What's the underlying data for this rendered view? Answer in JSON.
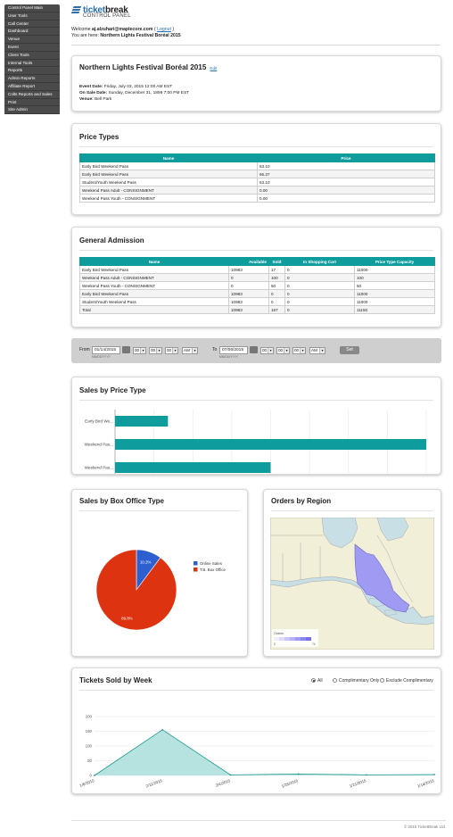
{
  "sidebar": {
    "items": [
      {
        "label": "Control Panel Main"
      },
      {
        "label": "User Tools"
      },
      {
        "label": "Call Center"
      },
      {
        "label": "Dashboard"
      },
      {
        "label": "Venue"
      },
      {
        "label": "Event"
      },
      {
        "label": "Client Tools"
      },
      {
        "label": "Internal Tools"
      },
      {
        "label": "Reports"
      },
      {
        "label": "Admin Reports"
      },
      {
        "label": "Affiliate Report"
      },
      {
        "label": "Colts Reports and Sales"
      },
      {
        "label": "Print"
      },
      {
        "label": "Site Admin"
      }
    ]
  },
  "header": {
    "logo_main_a": "ticket",
    "logo_main_b": "break",
    "logo_sub": "CONTROL PANEL",
    "welcome_prefix": "Welcome ",
    "user_email": "aj.alzuhari@maplecore.com",
    "logout_open": " ( ",
    "logout_label": "Logout",
    "logout_close": " )",
    "here_prefix": "You are here: ",
    "here_value": "Northern Lights Festival Boréal 2015"
  },
  "event": {
    "title": "Northern Lights Festival Boréal 2015",
    "edit_label": "Edit",
    "date_label": "Event Date:",
    "date_value": " Friday, July 03, 2015 12:00 AM EST",
    "onsale_label": "On Sale Date:",
    "onsale_value": " Sunday, December 31, 1899 7:00 PM EST",
    "venue_label": "Venue:",
    "venue_value": " Bell Park"
  },
  "price_types": {
    "title": "Price Types",
    "headers": [
      "Name",
      "Price"
    ],
    "rows": [
      [
        "Early Bird Weekend Pass",
        "53.10"
      ],
      [
        "Early Bird Weekend Pass",
        "66.37"
      ],
      [
        "Student/Youth Weekend Pass",
        "53.10"
      ],
      [
        "Weekend Pass Adult - CONSIGNMENT",
        "0.00"
      ],
      [
        "Weekend Pass Youth - CONSIGNMENT",
        "0.00"
      ]
    ]
  },
  "general_admission": {
    "title": "General Admission",
    "headers": [
      "Name",
      "Available",
      "Sold",
      "In Shopping Cart",
      "Price Type Capacity"
    ],
    "rows": [
      [
        "Early Bird Weekend Pass",
        "10983",
        "17",
        "0",
        "11000"
      ],
      [
        "Weekend Pass Adult - CONSIGNMENT",
        "0",
        "100",
        "0",
        "100"
      ],
      [
        "Weekend Pass Youth - CONSIGNMENT",
        "0",
        "50",
        "0",
        "50"
      ],
      [
        "Early Bird Weekend Pass",
        "10983",
        "0",
        "0",
        "11000"
      ],
      [
        "Student/Youth Weekend Pass",
        "10983",
        "0",
        "0",
        "11000"
      ],
      [
        "Total",
        "10983",
        "167",
        "0",
        "11150"
      ]
    ]
  },
  "filter": {
    "from_label": "From",
    "from_date": "01/14/2015",
    "to_label": "To",
    "to_date": "07/06/2015",
    "date_hint": "MM/DD/YYYY",
    "hour": "00",
    "minute": "00",
    "second": "00",
    "ampm": "AM",
    "set_label": "Set"
  },
  "sales_by_price_type": {
    "title": "Sales by Price Type"
  },
  "sales_by_box_office": {
    "title": "Sales by Box Office Type"
  },
  "orders_by_region": {
    "title": "Orders by Region",
    "legend_label": "Orders",
    "legend_min": "0",
    "legend_max": "74"
  },
  "tickets_by_week": {
    "title": "Tickets Sold by Week",
    "options": [
      {
        "label": "All",
        "checked": true
      },
      {
        "label": "Complimentary Only",
        "checked": false
      },
      {
        "label": "Exclude Complimentary",
        "checked": false
      }
    ]
  },
  "footer": {
    "text": "© 2015 TicketBreak Ltd."
  },
  "colors": {
    "teal": "#0f9c9c",
    "pie_blue": "#2e5fd0",
    "pie_red": "#dd3311",
    "region_fill": "#9f9af2",
    "area_fill": "#a9ddd9",
    "area_line": "#1a9b91"
  },
  "chart_data": [
    {
      "id": "price_type",
      "type": "bar",
      "orientation": "horizontal",
      "categories": [
        "Early Bird We...",
        "Weekend Pas...",
        "Weekend Pas..."
      ],
      "values": [
        17,
        100,
        50
      ],
      "grid": true
    },
    {
      "id": "box_office",
      "type": "pie",
      "labels": [
        "Online Sales",
        "T.B. Box Office"
      ],
      "values": [
        10.2,
        89.8
      ],
      "data_labels": [
        "10.2%",
        "89.8%"
      ],
      "legend": "right"
    },
    {
      "id": "weekly",
      "type": "area",
      "categories": [
        "1/6/2015",
        "2/11/2015",
        "2/4/2015",
        "1/28/2015",
        "1/21/2015",
        "1/14/2015"
      ],
      "values": [
        0,
        155,
        2,
        5,
        2,
        3
      ],
      "yticks": [
        0,
        50,
        100,
        150,
        200
      ],
      "ylim": [
        0,
        200
      ],
      "grid": true
    }
  ]
}
